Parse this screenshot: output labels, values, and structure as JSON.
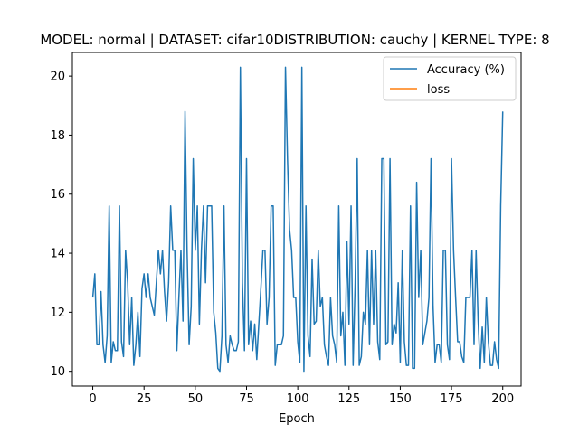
{
  "chart_data": {
    "type": "line",
    "title": "MODEL: normal | DATASET: cifar10DISTRIBUTION: cauchy | KERNEL TYPE: 8",
    "xlabel": "Epoch",
    "ylabel": "",
    "xlim": [
      -9.95,
      208.95
    ],
    "ylim": [
      9.5,
      20.8
    ],
    "xticks": [
      0,
      25,
      50,
      75,
      100,
      125,
      150,
      175,
      200
    ],
    "yticks": [
      10,
      12,
      14,
      16,
      18,
      20
    ],
    "grid": false,
    "legend_position": "top-right",
    "series": [
      {
        "name": "Accuracy (%)",
        "color": "#1f77b4",
        "values": [
          12.5,
          13.3,
          10.9,
          10.9,
          12.7,
          10.9,
          10.3,
          11.2,
          15.6,
          10.3,
          11.0,
          10.7,
          10.7,
          15.6,
          11.0,
          10.5,
          14.1,
          13.0,
          10.9,
          12.5,
          10.2,
          10.9,
          12.0,
          10.5,
          12.8,
          13.3,
          12.5,
          13.3,
          12.5,
          12.2,
          11.9,
          13.0,
          14.1,
          13.3,
          14.1,
          12.7,
          11.7,
          13.0,
          15.6,
          14.1,
          14.1,
          10.7,
          12.5,
          14.1,
          11.7,
          18.8,
          14.1,
          10.9,
          12.2,
          17.2,
          14.1,
          15.6,
          11.6,
          14.1,
          15.6,
          13.0,
          15.6,
          15.6,
          15.6,
          12.0,
          11.3,
          10.1,
          10.0,
          11.2,
          15.6,
          10.9,
          10.3,
          11.2,
          10.9,
          10.7,
          10.7,
          11.0,
          20.3,
          13.0,
          10.7,
          17.2,
          10.9,
          11.7,
          10.7,
          11.6,
          10.4,
          11.6,
          12.8,
          14.1,
          14.1,
          11.6,
          12.5,
          15.6,
          15.6,
          10.2,
          10.9,
          10.9,
          10.9,
          11.2,
          20.3,
          17.2,
          14.8,
          14.1,
          12.5,
          12.5,
          11.0,
          10.3,
          20.3,
          10.0,
          15.6,
          11.2,
          10.5,
          13.8,
          11.6,
          11.7,
          14.1,
          12.2,
          12.5,
          10.9,
          10.5,
          10.2,
          12.5,
          11.2,
          10.9,
          10.3,
          15.6,
          11.2,
          12.0,
          10.2,
          14.4,
          11.6,
          15.6,
          10.2,
          13.0,
          17.2,
          10.2,
          10.5,
          12.0,
          11.6,
          14.1,
          10.9,
          14.1,
          11.6,
          14.1,
          11.0,
          10.4,
          17.2,
          17.2,
          10.9,
          11.0,
          17.2,
          10.9,
          11.6,
          11.3,
          13.0,
          10.3,
          14.1,
          11.0,
          10.2,
          10.2,
          15.6,
          10.1,
          10.1,
          16.4,
          12.5,
          14.1,
          10.9,
          11.3,
          11.7,
          12.5,
          17.2,
          12.2,
          10.3,
          10.9,
          10.9,
          10.3,
          14.1,
          14.1,
          10.9,
          10.4,
          17.2,
          14.1,
          12.5,
          11.0,
          11.0,
          10.5,
          10.3,
          12.5,
          12.5,
          12.5,
          14.1,
          10.9,
          14.1,
          11.7,
          10.1,
          11.5,
          10.3,
          12.5,
          11.0,
          10.2,
          10.2,
          11.0,
          10.4,
          10.1,
          15.6,
          18.8
        ]
      },
      {
        "name": "loss",
        "color": "#ff7f0e",
        "values": []
      }
    ]
  }
}
